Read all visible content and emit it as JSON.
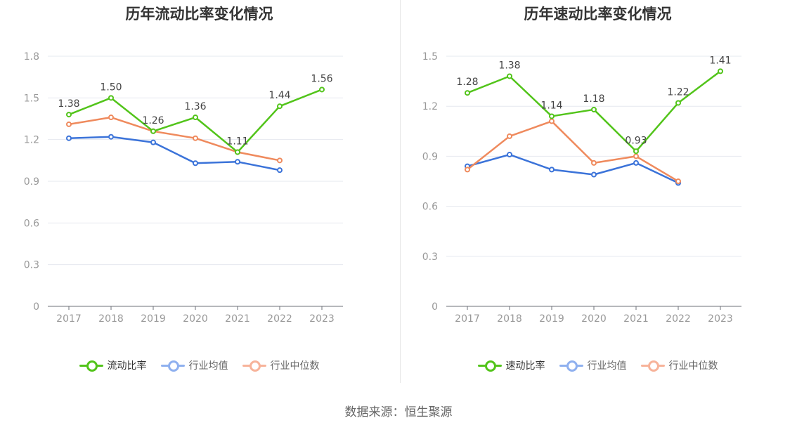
{
  "source_label": "数据来源：恒生聚源",
  "colors": {
    "main": "#52c41a",
    "avg": "#3b73d9",
    "median": "#ef8a5d",
    "legend_avg": "#8fb0ef",
    "legend_median": "#f7b39a"
  },
  "chart_data": [
    {
      "type": "line",
      "title": "历年流动比率变化情况",
      "categories": [
        "2017",
        "2018",
        "2019",
        "2020",
        "2021",
        "2022",
        "2023"
      ],
      "ylim": [
        0,
        1.8
      ],
      "yticks": [
        "0",
        "0.3",
        "0.6",
        "0.9",
        "1.2",
        "1.5",
        "1.8"
      ],
      "series": [
        {
          "name": "流动比率",
          "key": "main",
          "values": [
            1.38,
            1.5,
            1.26,
            1.36,
            1.11,
            1.44,
            1.56
          ],
          "labels": [
            "1.38",
            "1.50",
            "1.26",
            "1.36",
            "1.11",
            "1.44",
            "1.56"
          ]
        },
        {
          "name": "行业均值",
          "key": "avg",
          "values": [
            1.21,
            1.22,
            1.18,
            1.03,
            1.04,
            0.98,
            null
          ]
        },
        {
          "name": "行业中位数",
          "key": "median",
          "values": [
            1.31,
            1.36,
            1.26,
            1.21,
            1.11,
            1.05,
            null
          ]
        }
      ]
    },
    {
      "type": "line",
      "title": "历年速动比率变化情况",
      "categories": [
        "2017",
        "2018",
        "2019",
        "2020",
        "2021",
        "2022",
        "2023"
      ],
      "ylim": [
        0,
        1.5
      ],
      "yticks": [
        "0",
        "0.3",
        "0.6",
        "0.9",
        "1.2",
        "1.5"
      ],
      "series": [
        {
          "name": "速动比率",
          "key": "main",
          "values": [
            1.28,
            1.38,
            1.14,
            1.18,
            0.93,
            1.22,
            1.41
          ],
          "labels": [
            "1.28",
            "1.38",
            "1.14",
            "1.18",
            "0.93",
            "1.22",
            "1.41"
          ]
        },
        {
          "name": "行业均值",
          "key": "avg",
          "values": [
            0.84,
            0.91,
            0.82,
            0.79,
            0.86,
            0.74,
            null
          ]
        },
        {
          "name": "行业中位数",
          "key": "median",
          "values": [
            0.82,
            1.02,
            1.11,
            0.86,
            0.9,
            0.75,
            null
          ]
        }
      ]
    }
  ]
}
